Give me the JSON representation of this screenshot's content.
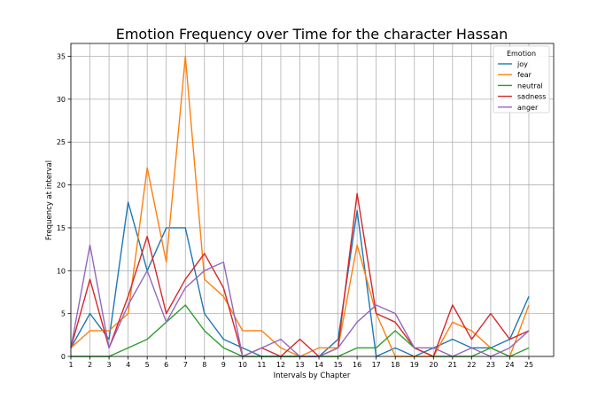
{
  "chart_data": {
    "type": "line",
    "title": "Emotion Frequency over Time for the character Hassan",
    "xlabel": "Intervals by Chapter",
    "ylabel": "Frequency at interval",
    "x": [
      1,
      2,
      3,
      4,
      5,
      6,
      7,
      8,
      9,
      10,
      11,
      12,
      13,
      14,
      15,
      16,
      17,
      18,
      19,
      20,
      21,
      22,
      23,
      24,
      25
    ],
    "x_ticks": [
      "1",
      "2",
      "3",
      "4",
      "5",
      "6",
      "7",
      "8",
      "9",
      "10",
      "11",
      "12",
      "13",
      "14",
      "15",
      "16",
      "17",
      "18",
      "19",
      "20",
      "21",
      "22",
      "23",
      "24",
      "25"
    ],
    "y_ticks": [
      "0",
      "5",
      "10",
      "15",
      "20",
      "25",
      "30",
      "35"
    ],
    "xlim": [
      1,
      26.3
    ],
    "ylim": [
      0,
      36.5
    ],
    "grid": true,
    "legend": {
      "title": "Emotion",
      "placement": "top-right"
    },
    "series": [
      {
        "name": "joy",
        "color": "#1f77b4",
        "values": [
          1,
          5,
          2,
          18,
          10,
          15,
          15,
          5,
          2,
          1,
          0,
          0,
          0,
          0,
          2,
          17,
          0,
          1,
          0,
          1,
          2,
          1,
          1,
          2,
          7
        ]
      },
      {
        "name": "fear",
        "color": "#ff7f0e",
        "values": [
          1,
          3,
          3,
          5,
          22,
          11,
          35,
          9,
          7,
          3,
          3,
          1,
          0,
          1,
          1,
          13,
          5,
          0,
          0,
          0,
          4,
          3,
          1,
          0,
          6
        ]
      },
      {
        "name": "neutral",
        "color": "#2ca02c",
        "values": [
          0,
          0,
          0,
          1,
          2,
          4,
          6,
          3,
          1,
          0,
          0,
          0,
          0,
          0,
          0,
          1,
          1,
          3,
          1,
          0,
          0,
          0,
          1,
          0,
          1
        ]
      },
      {
        "name": "sadness",
        "color": "#d62728",
        "values": [
          1,
          9,
          1,
          7,
          14,
          5,
          9,
          12,
          8,
          0,
          1,
          0,
          2,
          0,
          1,
          19,
          5,
          4,
          1,
          0,
          6,
          2,
          5,
          2,
          3
        ]
      },
      {
        "name": "anger",
        "color": "#9467bd",
        "values": [
          1,
          13,
          1,
          6,
          10,
          4,
          8,
          10,
          11,
          0,
          1,
          2,
          0,
          0,
          1,
          4,
          6,
          5,
          1,
          1,
          0,
          1,
          0,
          1,
          3
        ]
      }
    ]
  }
}
